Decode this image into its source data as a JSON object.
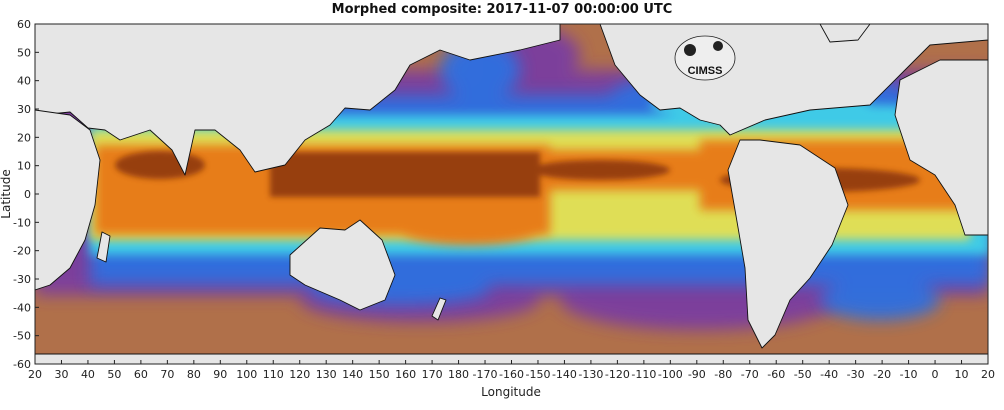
{
  "title": "Morphed composite: 2017-11-07 00:00:00 UTC",
  "logo_text": "CIMSS",
  "axes": {
    "xlabel": "Longitude",
    "ylabel": "Latitude",
    "x_ticks": [
      "20",
      "30",
      "40",
      "50",
      "60",
      "70",
      "80",
      "90",
      "100",
      "110",
      "120",
      "130",
      "140",
      "150",
      "160",
      "170",
      "180",
      "-170",
      "-160",
      "-150",
      "-140",
      "-130",
      "-120",
      "-110",
      "-100",
      "-90",
      "-80",
      "-70",
      "-60",
      "-50",
      "-40",
      "-30",
      "-20",
      "-10",
      "0",
      "10",
      "20"
    ],
    "y_ticks": [
      "60",
      "50",
      "40",
      "30",
      "20",
      "10",
      "0",
      "-10",
      "-20",
      "-30",
      "-40",
      "-50",
      "-60"
    ]
  },
  "colors": {
    "land": "#e6e6e6",
    "dry": "#b0704a",
    "purple": "#7a3ea0",
    "blue": "#2f6fe0",
    "cyan": "#3fd0e8",
    "yellow": "#e8e050",
    "orange": "#e87818",
    "dark": "#6a2808"
  }
}
